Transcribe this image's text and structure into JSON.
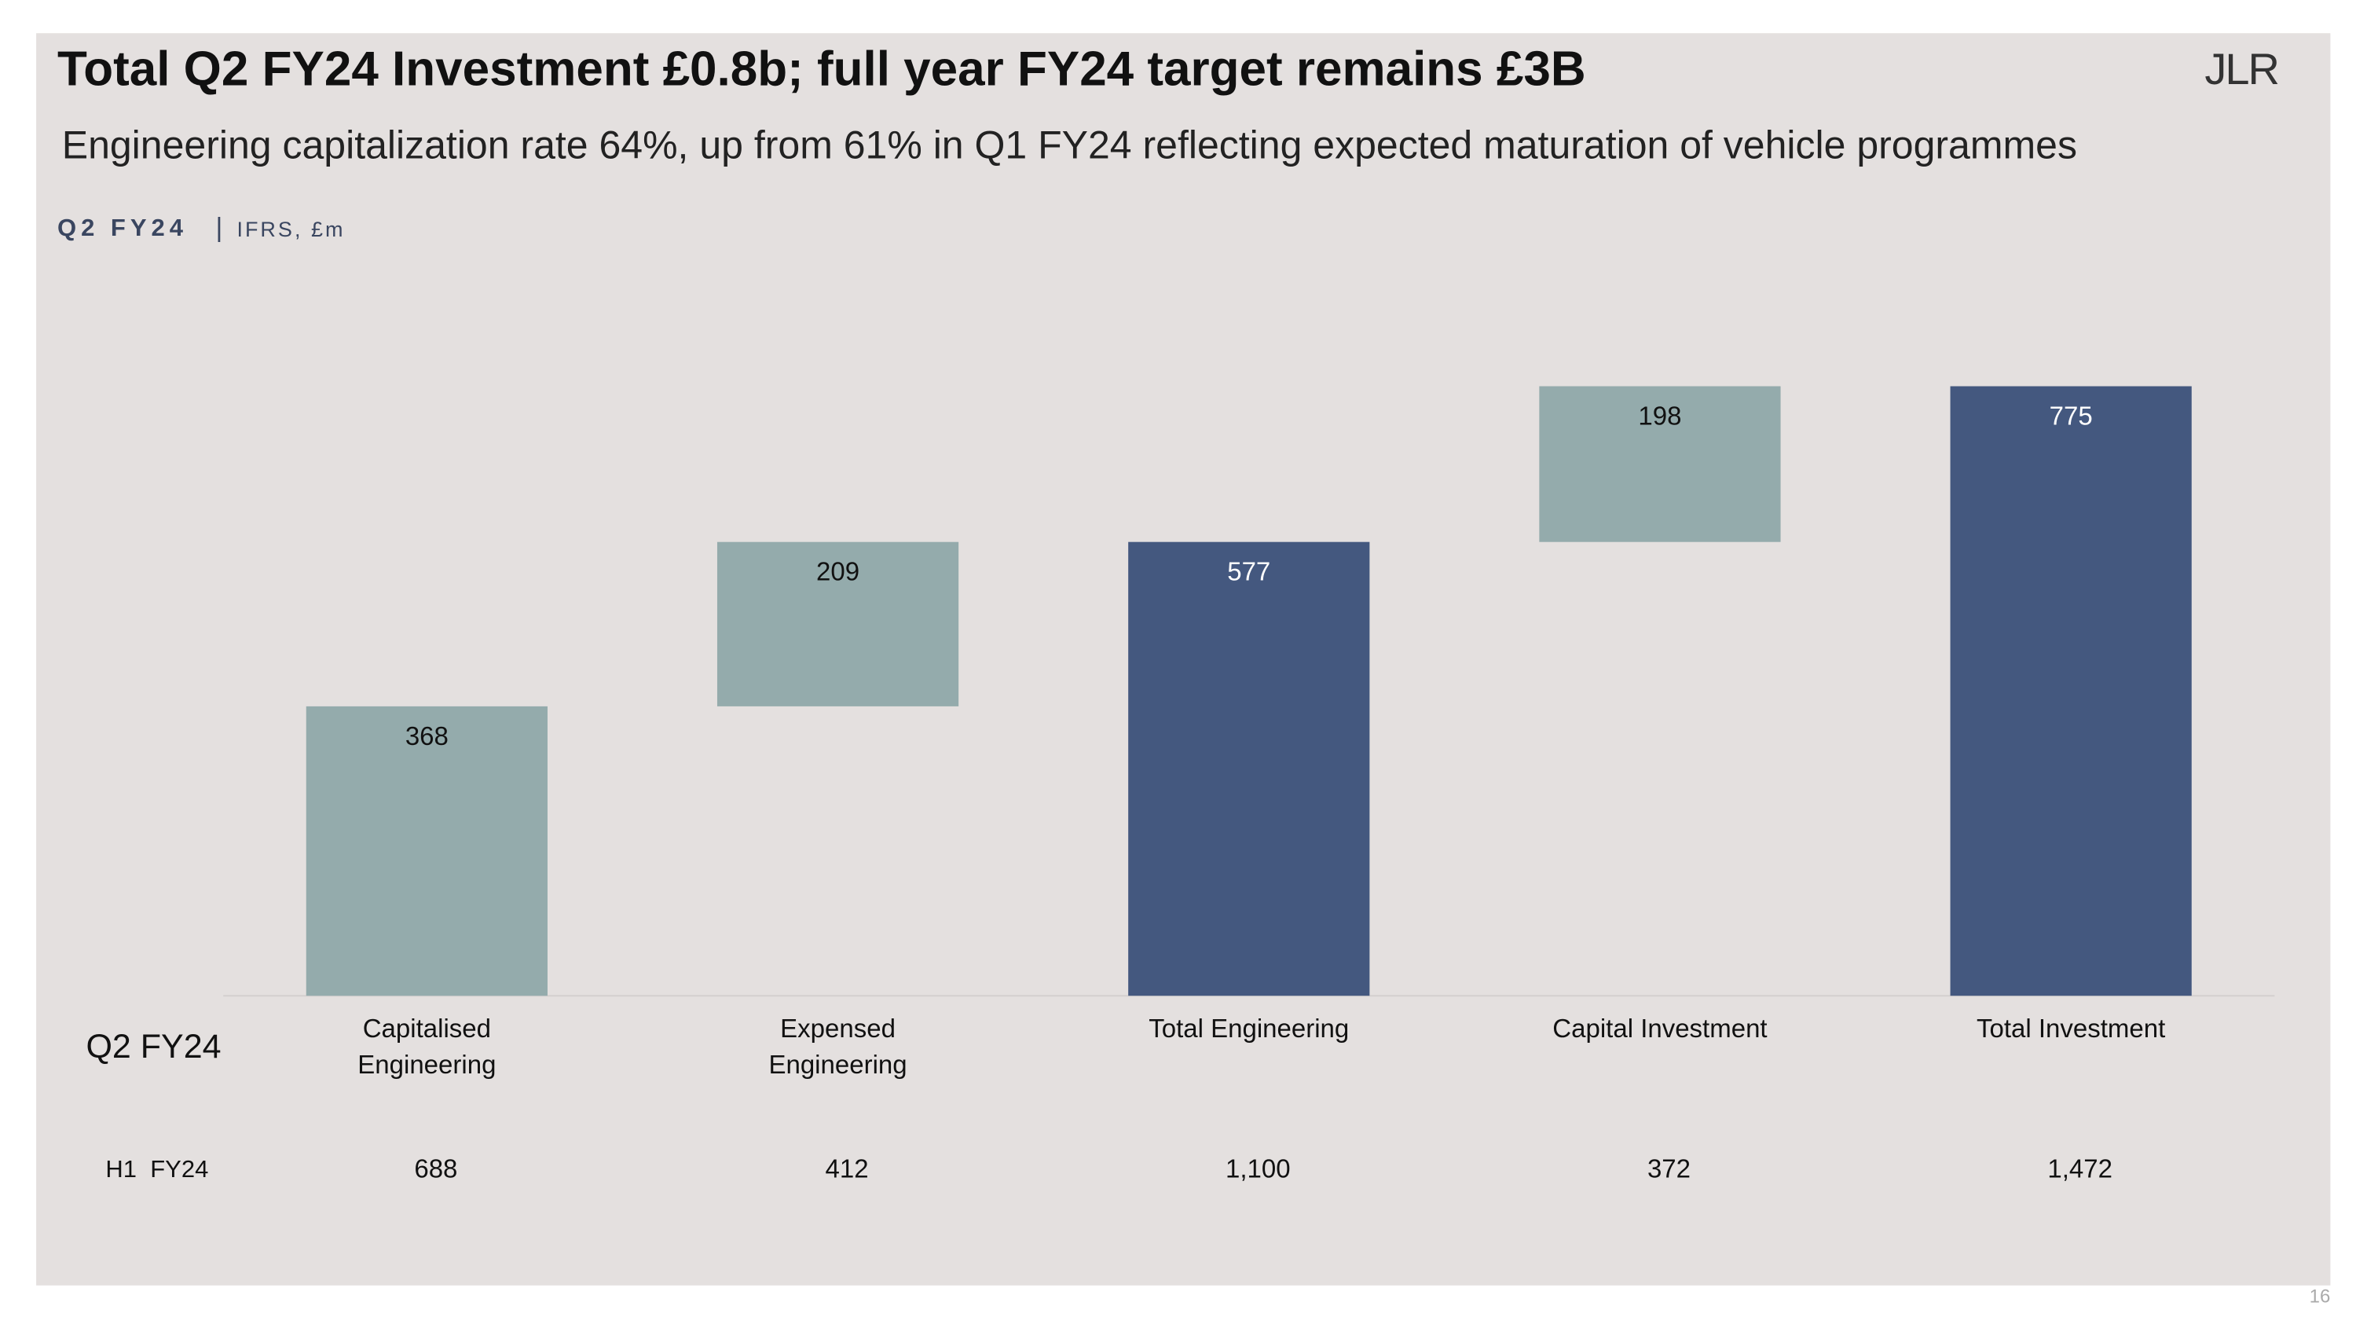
{
  "chart_data": {
    "type": "waterfall",
    "title": "Total Q2 FY24 Investment £0.8b; full year FY24 target remains £3B",
    "subtitle": "Engineering capitalization rate 64%, up from 61% in Q1 FY24 reflecting expected maturation of vehicle programmes",
    "section_label": "Q2 FY24",
    "units": "IFRS, £m",
    "logo": "JLR",
    "page_number": "16",
    "row_label": "Q2 FY24",
    "categories": [
      "Capitalised Engineering",
      "Expensed Engineering",
      "Total Engineering",
      "Capital Investment",
      "Total Investment"
    ],
    "values": [
      368,
      209,
      577,
      198,
      775
    ],
    "measures": [
      "relative",
      "relative",
      "total",
      "relative",
      "total"
    ],
    "color": "#94abac",
    "total_color": "#44587f",
    "h1": {
      "label": "H1  FY24",
      "values": [
        "688",
        "412",
        "1,100",
        "372",
        "1,472"
      ]
    }
  }
}
